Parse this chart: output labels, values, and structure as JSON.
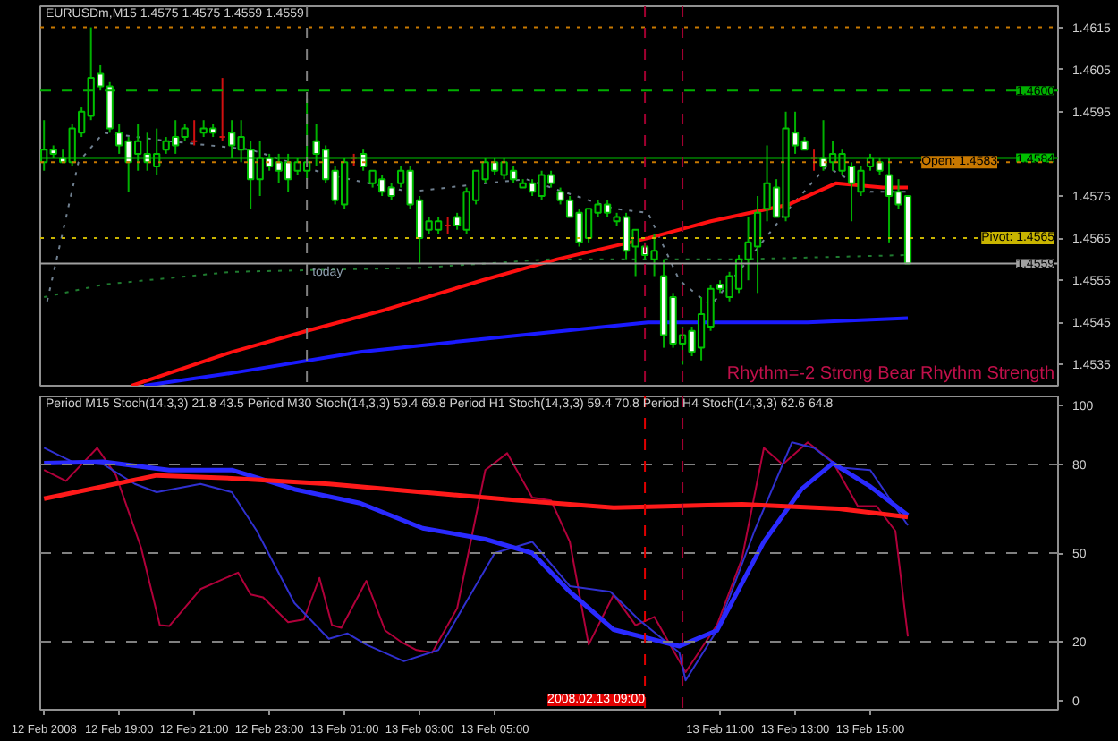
{
  "chart_data": [
    {
      "type": "candlestick",
      "title": "EURUSDm,M15  1.4575 1.4575 1.4559 1.4559",
      "tick_labels": "y",
      "annotations": [
        "Rhythm=-2 Strong Bear Rhythm Strength",
        "today"
      ],
      "xlim": [
        "2008-02-12T16:54",
        "2008-02-13T20:00"
      ],
      "ylim": [
        1.453,
        1.462
      ],
      "yticks": [
        1.4535,
        1.4545,
        1.4555,
        1.4565,
        1.4575,
        1.4595,
        1.4605,
        1.4615
      ],
      "x": [
        "2008-02-12T17:00",
        "2008-02-12T17:15",
        "2008-02-12T17:30",
        "2008-02-12T17:45",
        "2008-02-12T18:00",
        "2008-02-12T18:15",
        "2008-02-12T18:30",
        "2008-02-12T18:45",
        "2008-02-12T19:00",
        "2008-02-12T19:15",
        "2008-02-12T19:30",
        "2008-02-12T19:45",
        "2008-02-12T20:00",
        "2008-02-12T20:15",
        "2008-02-12T20:30",
        "2008-02-12T20:45",
        "2008-02-12T21:00",
        "2008-02-12T21:15",
        "2008-02-12T21:30",
        "2008-02-12T21:45",
        "2008-02-12T22:00",
        "2008-02-12T22:15",
        "2008-02-12T22:30",
        "2008-02-12T22:45",
        "2008-02-12T23:00",
        "2008-02-12T23:15",
        "2008-02-12T23:30",
        "2008-02-12T23:45",
        "2008-02-13T00:00",
        "2008-02-13T00:15",
        "2008-02-13T00:30",
        "2008-02-13T00:45",
        "2008-02-13T01:00",
        "2008-02-13T01:15",
        "2008-02-13T01:30",
        "2008-02-13T01:45",
        "2008-02-13T02:00",
        "2008-02-13T02:15",
        "2008-02-13T02:30",
        "2008-02-13T02:45",
        "2008-02-13T03:00",
        "2008-02-13T03:15",
        "2008-02-13T03:30",
        "2008-02-13T03:45",
        "2008-02-13T04:00",
        "2008-02-13T04:15",
        "2008-02-13T04:30",
        "2008-02-13T04:45",
        "2008-02-13T05:00",
        "2008-02-13T05:15",
        "2008-02-13T05:30",
        "2008-02-13T05:45",
        "2008-02-13T06:00",
        "2008-02-13T06:15",
        "2008-02-13T06:30",
        "2008-02-13T06:45",
        "2008-02-13T07:00",
        "2008-02-13T07:15",
        "2008-02-13T07:30",
        "2008-02-13T07:45",
        "2008-02-13T08:00",
        "2008-02-13T08:15",
        "2008-02-13T08:30",
        "2008-02-13T08:45",
        "2008-02-13T09:00",
        "2008-02-13T09:15",
        "2008-02-13T09:30",
        "2008-02-13T09:45",
        "2008-02-13T10:00",
        "2008-02-13T10:15",
        "2008-02-13T10:30",
        "2008-02-13T10:45",
        "2008-02-13T11:00",
        "2008-02-13T11:15",
        "2008-02-13T11:30",
        "2008-02-13T11:45",
        "2008-02-13T12:00",
        "2008-02-13T12:15",
        "2008-02-13T12:30",
        "2008-02-13T12:45",
        "2008-02-13T13:00",
        "2008-02-13T13:15",
        "2008-02-13T13:30",
        "2008-02-13T13:45",
        "2008-02-13T14:00",
        "2008-02-13T14:15",
        "2008-02-13T14:30",
        "2008-02-13T14:45",
        "2008-02-13T15:00",
        "2008-02-13T15:15",
        "2008-02-13T15:30",
        "2008-02-13T15:45",
        "2008-02-13T16:00"
      ],
      "ohlc": [
        [
          1.4583,
          1.4593,
          1.4581,
          1.4586
        ],
        [
          1.4586,
          1.4587,
          1.4584,
          1.4585
        ],
        [
          1.4584,
          1.4586,
          1.4583,
          1.4583
        ],
        [
          1.4583,
          1.4592,
          1.4582,
          1.4591
        ],
        [
          1.459,
          1.4596,
          1.4589,
          1.4595
        ],
        [
          1.4594,
          1.4615,
          1.4593,
          1.4603
        ],
        [
          1.4604,
          1.4606,
          1.46,
          1.4601
        ],
        [
          1.4601,
          1.4602,
          1.459,
          1.4591
        ],
        [
          1.459,
          1.4592,
          1.4585,
          1.4587
        ],
        [
          1.4588,
          1.4589,
          1.4576,
          1.4583
        ],
        [
          1.4585,
          1.4592,
          1.4581,
          1.4588
        ],
        [
          1.4585,
          1.459,
          1.4581,
          1.4583
        ],
        [
          1.4582,
          1.4591,
          1.458,
          1.4585
        ],
        [
          1.4586,
          1.4589,
          1.4585,
          1.4588
        ],
        [
          1.4589,
          1.4593,
          1.4585,
          1.4587
        ],
        [
          1.4589,
          1.4592,
          1.4588,
          1.4591
        ],
        [
          1.4588,
          1.4593,
          1.4587,
          1.4588
        ],
        [
          1.459,
          1.4593,
          1.4589,
          1.4591
        ],
        [
          1.4591,
          1.4592,
          1.4589,
          1.459
        ],
        [
          1.4589,
          1.4603,
          1.4588,
          1.4589
        ],
        [
          1.459,
          1.4593,
          1.4584,
          1.4587
        ],
        [
          1.4586,
          1.4593,
          1.4583,
          1.4589
        ],
        [
          1.4586,
          1.4588,
          1.4572,
          1.4579
        ],
        [
          1.4579,
          1.4588,
          1.4575,
          1.4584
        ],
        [
          1.4584,
          1.4585,
          1.4581,
          1.4582
        ],
        [
          1.4583,
          1.4585,
          1.4578,
          1.4581
        ],
        [
          1.4583,
          1.4585,
          1.4576,
          1.4579
        ],
        [
          1.4581,
          1.4584,
          1.458,
          1.4583
        ],
        [
          1.4581,
          1.4598,
          1.4579,
          1.4583
        ],
        [
          1.4588,
          1.4592,
          1.4582,
          1.4585
        ],
        [
          1.4586,
          1.4587,
          1.4578,
          1.4579
        ],
        [
          1.4581,
          1.4582,
          1.4573,
          1.4574
        ],
        [
          1.4573,
          1.4584,
          1.4572,
          1.4583
        ],
        [
          1.4584,
          1.4585,
          1.4582,
          1.4584
        ],
        [
          1.4585,
          1.4586,
          1.4581,
          1.4582
        ],
        [
          1.4578,
          1.4581,
          1.4577,
          1.4581
        ],
        [
          1.4579,
          1.458,
          1.4575,
          1.4576
        ],
        [
          1.4577,
          1.4578,
          1.4574,
          1.4575
        ],
        [
          1.4578,
          1.4582,
          1.4577,
          1.4581
        ],
        [
          1.4581,
          1.4582,
          1.4572,
          1.4573
        ],
        [
          1.4574,
          1.4575,
          1.4559,
          1.4565
        ],
        [
          1.4567,
          1.457,
          1.4566,
          1.4569
        ],
        [
          1.4567,
          1.457,
          1.4566,
          1.4569
        ],
        [
          1.4568,
          1.457,
          1.4566,
          1.4568
        ],
        [
          1.457,
          1.4571,
          1.4567,
          1.4568
        ],
        [
          1.4567,
          1.4577,
          1.4566,
          1.4576
        ],
        [
          1.4574,
          1.4581,
          1.4573,
          1.4581
        ],
        [
          1.4579,
          1.4584,
          1.4578,
          1.4583
        ],
        [
          1.4583,
          1.4584,
          1.458,
          1.4581
        ],
        [
          1.458,
          1.4584,
          1.4579,
          1.4583
        ],
        [
          1.4581,
          1.4582,
          1.4578,
          1.4579
        ],
        [
          1.4577,
          1.4579,
          1.4577,
          1.4578
        ],
        [
          1.4578,
          1.4579,
          1.4575,
          1.4576
        ],
        [
          1.4575,
          1.4581,
          1.4574,
          1.458
        ],
        [
          1.458,
          1.4581,
          1.4577,
          1.4578
        ],
        [
          1.4576,
          1.4577,
          1.4573,
          1.4574
        ],
        [
          1.4574,
          1.4575,
          1.457,
          1.457
        ],
        [
          1.4571,
          1.4572,
          1.4563,
          1.4564
        ],
        [
          1.4565,
          1.4572,
          1.4564,
          1.4572
        ],
        [
          1.4571,
          1.4574,
          1.457,
          1.4573
        ],
        [
          1.4573,
          1.4574,
          1.457,
          1.4571
        ],
        [
          1.4569,
          1.4571,
          1.4568,
          1.457
        ],
        [
          1.457,
          1.4571,
          1.456,
          1.4562
        ],
        [
          1.4563,
          1.4567,
          1.4556,
          1.4567
        ],
        [
          1.4563,
          1.4564,
          1.456,
          1.4561
        ],
        [
          1.456,
          1.4566,
          1.4556,
          1.4562
        ],
        [
          1.4556,
          1.456,
          1.4539,
          1.4542
        ],
        [
          1.4551,
          1.4552,
          1.4539,
          1.454
        ],
        [
          1.454,
          1.4544,
          1.4535,
          1.4542
        ],
        [
          1.4543,
          1.4544,
          1.4537,
          1.4538
        ],
        [
          1.4539,
          1.4551,
          1.4536,
          1.4547
        ],
        [
          1.4544,
          1.4554,
          1.4543,
          1.4553
        ],
        [
          1.4554,
          1.4555,
          1.4552,
          1.4553
        ],
        [
          1.4551,
          1.4557,
          1.455,
          1.4556
        ],
        [
          1.4553,
          1.4561,
          1.4552,
          1.456
        ],
        [
          1.456,
          1.457,
          1.4555,
          1.4564
        ],
        [
          1.4563,
          1.4575,
          1.4552,
          1.4571
        ],
        [
          1.4572,
          1.4587,
          1.4569,
          1.4578
        ],
        [
          1.4577,
          1.4579,
          1.457,
          1.457
        ],
        [
          1.457,
          1.4595,
          1.4569,
          1.4591
        ],
        [
          1.459,
          1.4595,
          1.4585,
          1.4587
        ],
        [
          1.4588,
          1.4589,
          1.4586,
          1.4586
        ],
        [
          1.4584,
          1.4586,
          1.4581,
          1.4584
        ],
        [
          1.4584,
          1.4593,
          1.4581,
          1.4582
        ],
        [
          1.4583,
          1.4588,
          1.4581,
          1.4585
        ],
        [
          1.4581,
          1.4586,
          1.458,
          1.4585
        ],
        [
          1.4582,
          1.4583,
          1.4569,
          1.4578
        ],
        [
          1.4576,
          1.4582,
          1.4575,
          1.4581
        ],
        [
          1.4582,
          1.4585,
          1.4581,
          1.4584
        ],
        [
          1.4583,
          1.4584,
          1.458,
          1.4581
        ],
        [
          1.458,
          1.4584,
          1.4564,
          1.4575
        ],
        [
          1.4576,
          1.4579,
          1.4572,
          1.4573
        ],
        [
          1.4575,
          1.4575,
          1.4559,
          1.4559
        ]
      ],
      "series": [
        {
          "type": "line",
          "color": "#708090",
          "line_style": "dotted",
          "x": [
            "2008-02-12T17:05",
            "2008-02-12T17:55",
            "2008-02-12T18:35",
            "2008-02-12T20:20",
            "2008-02-12T22:30",
            "2008-02-13T00:35",
            "2008-02-13T02:45",
            "2008-02-13T04:45",
            "2008-02-13T05:50",
            "2008-02-13T08:10",
            "2008-02-13T09:05",
            "2008-02-13T09:55",
            "2008-02-13T10:45",
            "2008-02-13T11:35",
            "2008-02-13T12:50",
            "2008-02-13T13:50",
            "2008-02-13T15:00",
            "2008-02-13T16:00"
          ],
          "values": [
            1.455,
            1.4583,
            1.459,
            1.4588,
            1.4586,
            1.458,
            1.4576,
            1.4578,
            1.4579,
            1.4572,
            1.4571,
            1.4555,
            1.4549,
            1.4558,
            1.4572,
            1.4582,
            1.4576,
            1.4576
          ]
        },
        {
          "type": "line",
          "color": "#1f7a2f",
          "line_style": "dotted",
          "x": [
            "2008-02-12T17:00",
            "2008-02-12T18:35",
            "2008-02-12T22:00",
            "2008-02-13T03:05",
            "2008-02-13T06:30",
            "2008-02-13T11:35",
            "2008-02-13T16:00"
          ],
          "values": [
            1.4551,
            1.4554,
            1.4557,
            1.4558,
            1.456,
            1.456,
            1.4561
          ]
        },
        {
          "type": "line",
          "color": "#ff1010",
          "line_style": "solid",
          "x": [
            "2008-02-12T19:20",
            "2008-02-12T22:00",
            "2008-02-13T00:00",
            "2008-02-13T02:05",
            "2008-02-13T04:40",
            "2008-02-13T06:40",
            "2008-02-13T09:05",
            "2008-02-13T10:45",
            "2008-02-13T12:50",
            "2008-02-13T14:05",
            "2008-02-13T15:20",
            "2008-02-13T16:00"
          ],
          "values": [
            1.453,
            1.4538,
            1.4543,
            1.4548,
            1.4555,
            1.456,
            1.4565,
            1.4569,
            1.4573,
            1.4578,
            1.4577,
            1.4577
          ]
        },
        {
          "type": "line",
          "color": "#1a1aff",
          "line_style": "solid",
          "x": [
            "2008-02-12T19:40",
            "2008-02-12T22:00",
            "2008-02-13T01:25",
            "2008-02-13T04:35",
            "2008-02-13T09:05",
            "2008-02-13T13:20",
            "2008-02-13T16:00"
          ],
          "values": [
            1.453,
            1.4533,
            1.4538,
            1.4541,
            1.4545,
            1.4545,
            1.4546
          ]
        }
      ],
      "ref_lines": [
        {
          "axis": "y",
          "value": 1.4615,
          "color": "#c87800",
          "line_style": "dotted"
        },
        {
          "axis": "y",
          "value": 1.46,
          "label": "1.4600",
          "color": "#00b000",
          "line_style": "dashed"
        },
        {
          "axis": "y",
          "value": 1.4584,
          "label": "1.4584",
          "color": "#00c000",
          "line_style": "solid"
        },
        {
          "axis": "y",
          "value": 1.4583,
          "label": "Open: 1.4583",
          "color": "#c87800",
          "line_style": "dotted"
        },
        {
          "axis": "y",
          "value": 1.4565,
          "label": "Pivot: 1.4565",
          "color": "#c8b400",
          "line_style": "dotted"
        },
        {
          "axis": "y",
          "value": 1.4559,
          "label": "1.4559",
          "color": "#a0a0a0",
          "line_style": "solid"
        },
        {
          "axis": "x",
          "value": "2008-02-13T00:00",
          "color": "#808080",
          "line_style": "dashed"
        },
        {
          "axis": "x",
          "value": "2008-02-13T09:00",
          "color": "#a00030",
          "line_style": "dashed"
        },
        {
          "axis": "x",
          "value": "2008-02-13T10:00",
          "color": "#a00030",
          "line_style": "dashed"
        }
      ]
    },
    {
      "type": "line",
      "title": "Period M15 Stoch(14,3,3) 21.8 43.5  Period M30 Stoch(14,3,3) 59.4 69.8  Period H1 Stoch(14,3,3) 59.4 70.8  Period H4 Stoch(14,3,3) 62.6 64.8",
      "xlim": [
        "2008-02-12T16:54",
        "2008-02-13T20:00"
      ],
      "ylim": [
        -3,
        103
      ],
      "yticks": [
        0,
        20,
        50,
        80,
        100
      ],
      "xticks": [
        {
          "value": "2008-02-12T17:00",
          "label": "12 Feb 2008"
        },
        {
          "value": "2008-02-12T19:00",
          "label": "12 Feb 19:00"
        },
        {
          "value": "2008-02-12T21:00",
          "label": "12 Feb 21:00"
        },
        {
          "value": "2008-02-12T23:00",
          "label": "12 Feb 23:00"
        },
        {
          "value": "2008-02-13T01:00",
          "label": "13 Feb 01:00"
        },
        {
          "value": "2008-02-13T03:00",
          "label": "13 Feb 03:00"
        },
        {
          "value": "2008-02-13T05:00",
          "label": "13 Feb 05:00"
        },
        {
          "value": "2008-02-13T11:00",
          "label": "13 Feb 11:00"
        },
        {
          "value": "2008-02-13T13:00",
          "label": "13 Feb 13:00"
        },
        {
          "value": "2008-02-13T15:00",
          "label": "13 Feb 15:00"
        }
      ],
      "series": [
        {
          "color": "#b0003a",
          "x": [
            "2008-02-12T17:00",
            "2008-02-12T17:35",
            "2008-02-12T18:25",
            "2008-02-12T18:55",
            "2008-02-12T19:35",
            "2008-02-12T20:05",
            "2008-02-12T20:20",
            "2008-02-12T21:10",
            "2008-02-12T22:10",
            "2008-02-12T22:30",
            "2008-02-12T22:50",
            "2008-02-12T23:30",
            "2008-02-12T23:55",
            "2008-02-13T00:20",
            "2008-02-13T00:40",
            "2008-02-13T00:55",
            "2008-02-13T01:35",
            "2008-02-13T02:05",
            "2008-02-13T02:30",
            "2008-02-13T02:55",
            "2008-02-13T03:20",
            "2008-02-13T04:00",
            "2008-02-13T04:45",
            "2008-02-13T05:20",
            "2008-02-13T06:00",
            "2008-02-13T06:30",
            "2008-02-13T07:00",
            "2008-02-13T07:30",
            "2008-02-13T08:10",
            "2008-02-13T08:45",
            "2008-02-13T09:15",
            "2008-02-13T10:05",
            "2008-02-13T10:55",
            "2008-02-13T11:35",
            "2008-02-13T12:10",
            "2008-02-13T12:40",
            "2008-02-13T13:20",
            "2008-02-13T14:00",
            "2008-02-13T14:40",
            "2008-02-13T15:10",
            "2008-02-13T15:40",
            "2008-02-13T16:00"
          ],
          "values": [
            78.1,
            74.4,
            85.6,
            76.3,
            51.9,
            25.6,
            25.3,
            37.8,
            43.4,
            36,
            35,
            26.6,
            27.5,
            41.6,
            25.6,
            24.7,
            40.6,
            23.8,
            20,
            17.2,
            16.3,
            31.3,
            78.1,
            83.8,
            68.8,
            67.8,
            53.8,
            19,
            35.9,
            25.6,
            28.4,
            9.7,
            25.6,
            48.1,
            85.6,
            80,
            87.5,
            80.9,
            65.9,
            65.9,
            57.5,
            21.8
          ]
        },
        {
          "color": "#3030d0",
          "x": [
            "2008-02-12T17:00",
            "2008-02-12T17:45",
            "2008-02-12T18:35",
            "2008-02-12T19:25",
            "2008-02-12T20:00",
            "2008-02-12T21:10",
            "2008-02-12T22:00",
            "2008-02-12T22:40",
            "2008-02-12T23:40",
            "2008-02-13T00:35",
            "2008-02-13T01:05",
            "2008-02-13T01:35",
            "2008-02-13T02:35",
            "2008-02-13T03:30",
            "2008-02-13T05:00",
            "2008-02-13T06:00",
            "2008-02-13T07:00",
            "2008-02-13T08:05",
            "2008-02-13T08:50",
            "2008-02-13T09:55",
            "2008-02-13T10:05",
            "2008-02-13T10:55",
            "2008-02-13T11:55",
            "2008-02-13T12:55",
            "2008-02-13T13:30",
            "2008-02-13T14:10",
            "2008-02-13T15:00",
            "2008-02-13T16:00"
          ],
          "values": [
            85.6,
            80.9,
            80,
            73.4,
            70.6,
            73.4,
            70.6,
            57.5,
            33.1,
            21,
            22.8,
            19,
            13.4,
            17.2,
            50,
            53.8,
            38.8,
            36.9,
            27.5,
            16.3,
            6.9,
            23.8,
            57.5,
            87.5,
            85.6,
            79,
            78.1,
            59.4
          ]
        },
        {
          "color": "#2a2aff",
          "x": [
            "2008-02-12T17:00",
            "2008-02-12T18:35",
            "2008-02-12T20:20",
            "2008-02-12T22:00",
            "2008-02-12T23:40",
            "2008-02-13T01:25",
            "2008-02-13T03:05",
            "2008-02-13T04:45",
            "2008-02-13T06:00",
            "2008-02-13T07:00",
            "2008-02-13T08:10",
            "2008-02-13T09:55",
            "2008-02-13T10:55",
            "2008-02-13T12:10",
            "2008-02-13T13:10",
            "2008-02-13T14:00",
            "2008-02-13T15:00",
            "2008-02-13T16:00"
          ],
          "values": [
            80.4,
            80.9,
            78.1,
            78.1,
            71.6,
            66.9,
            58.4,
            54.7,
            50,
            36.9,
            24.1,
            18.5,
            23.8,
            53.8,
            71.6,
            80.4,
            72.5,
            62.8
          ]
        },
        {
          "color": "#ff1a1a",
          "x": [
            "2008-02-12T17:00",
            "2008-02-12T20:00",
            "2008-02-12T22:00",
            "2008-02-13T00:35",
            "2008-02-13T03:05",
            "2008-02-13T05:40",
            "2008-02-13T08:10",
            "2008-02-13T11:35",
            "2008-02-13T14:10",
            "2008-02-13T16:00"
          ],
          "values": [
            68.4,
            76.3,
            75.3,
            73.4,
            70.6,
            67.8,
            65.4,
            66.5,
            65,
            62.2
          ]
        }
      ],
      "ref_lines": [
        {
          "axis": "y",
          "value": 20,
          "color": "#808080",
          "line_style": "dashed"
        },
        {
          "axis": "y",
          "value": 50,
          "color": "#808080",
          "line_style": "dashed"
        },
        {
          "axis": "y",
          "value": 80,
          "color": "#808080",
          "line_style": "dashed"
        },
        {
          "axis": "x",
          "value": "2008-02-13T09:00",
          "label": "2008.02.13 09:00",
          "color": "#e00000",
          "line_style": "dashed"
        },
        {
          "axis": "x",
          "value": "2008-02-13T10:00",
          "color": "#a00030",
          "line_style": "dashed"
        }
      ]
    }
  ]
}
